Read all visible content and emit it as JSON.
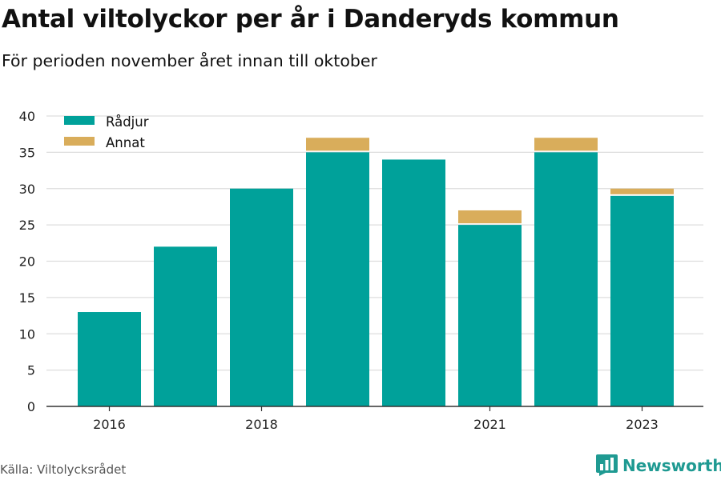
{
  "title": "Antal viltolyckor per år i Danderyds kommun",
  "subtitle": "För perioden november året innan till oktober",
  "source": "Källa: Viltolycksrådet",
  "brand": {
    "name": "Newsworthy",
    "icon": "newsworthy-bar-chart-icon",
    "color": "#1f9a92"
  },
  "colors": {
    "radjur": "#00a19a",
    "annat": "#d9ad5b",
    "grid": "#dddddd",
    "axis": "#333333"
  },
  "chart_data": {
    "type": "bar",
    "stacked": true,
    "x": [
      2016,
      2017,
      2018,
      2019,
      2020,
      2021,
      2022,
      2023
    ],
    "x_tick_labels": [
      "2016",
      "2018",
      "2021",
      "2023"
    ],
    "x_tick_values": [
      2016,
      2018,
      2021,
      2023
    ],
    "series": [
      {
        "name": "Rådjur",
        "values": [
          13,
          22,
          30,
          35,
          34,
          25,
          35,
          29
        ]
      },
      {
        "name": "Annat",
        "values": [
          0,
          0,
          0,
          2,
          0,
          2,
          2,
          1
        ]
      }
    ],
    "ylim": [
      0,
      40
    ],
    "y_ticks": [
      0,
      5,
      10,
      15,
      20,
      25,
      30,
      35,
      40
    ],
    "grid": true,
    "legend_position": "top-left",
    "xlabel": "",
    "ylabel": ""
  }
}
